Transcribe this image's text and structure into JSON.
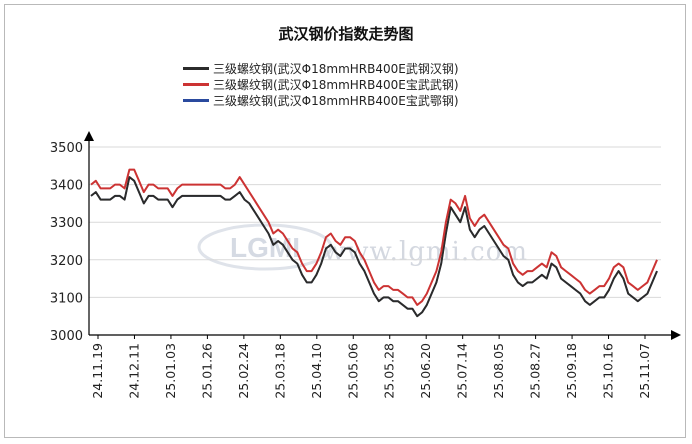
{
  "chart_data": {
    "type": "line",
    "title": "武汉钢价指数走势图",
    "xlabel": "",
    "ylabel": "",
    "ylim": [
      3000,
      3500
    ],
    "yticks": [
      "3500",
      "3400",
      "3300",
      "3200",
      "3100",
      "3000"
    ],
    "xticks": [
      "24.11.19",
      "24.12.11",
      "25.01.03",
      "25.01.26",
      "25.02.24",
      "25.03.18",
      "25.04.10",
      "25.05.06",
      "25.05.28",
      "25.06.20",
      "25.07.14",
      "25.08.05",
      "25.08.27",
      "25.09.18",
      "25.10.16",
      "25.11.07"
    ],
    "grid": true,
    "legend_position": "top-center",
    "series": [
      {
        "name": "三级螺纹钢(武汉Φ18mmHRB400E武钢汉钢)",
        "color": "#2b2b2b",
        "values": [
          3370,
          3380,
          3360,
          3360,
          3360,
          3370,
          3370,
          3360,
          3420,
          3410,
          3380,
          3350,
          3370,
          3370,
          3360,
          3360,
          3360,
          3340,
          3360,
          3370,
          3370,
          3370,
          3370,
          3370,
          3370,
          3370,
          3370,
          3370,
          3360,
          3360,
          3370,
          3380,
          3360,
          3350,
          3330,
          3310,
          3290,
          3270,
          3240,
          3250,
          3240,
          3220,
          3200,
          3190,
          3160,
          3140,
          3140,
          3160,
          3190,
          3230,
          3240,
          3220,
          3210,
          3230,
          3230,
          3220,
          3190,
          3170,
          3140,
          3110,
          3090,
          3100,
          3100,
          3090,
          3090,
          3080,
          3070,
          3070,
          3050,
          3060,
          3080,
          3110,
          3140,
          3190,
          3270,
          3340,
          3320,
          3300,
          3340,
          3280,
          3260,
          3280,
          3290,
          3270,
          3250,
          3230,
          3210,
          3200,
          3160,
          3140,
          3130,
          3140,
          3140,
          3150,
          3160,
          3150,
          3190,
          3180,
          3150,
          3140,
          3130,
          3120,
          3110,
          3090,
          3080,
          3090,
          3100,
          3100,
          3120,
          3150,
          3170,
          3150,
          3110,
          3100,
          3090,
          3100,
          3110,
          3140,
          3170
        ]
      },
      {
        "name": "三级螺纹钢(武汉Φ18mmHRB400E宝武武钢)",
        "color": "#cc3333",
        "values": [
          3400,
          3410,
          3390,
          3390,
          3390,
          3400,
          3400,
          3390,
          3440,
          3440,
          3410,
          3380,
          3400,
          3400,
          3390,
          3390,
          3390,
          3370,
          3390,
          3400,
          3400,
          3400,
          3400,
          3400,
          3400,
          3400,
          3400,
          3400,
          3390,
          3390,
          3400,
          3420,
          3400,
          3380,
          3360,
          3340,
          3320,
          3300,
          3270,
          3280,
          3270,
          3250,
          3230,
          3220,
          3190,
          3170,
          3170,
          3190,
          3220,
          3260,
          3270,
          3250,
          3240,
          3260,
          3260,
          3250,
          3220,
          3200,
          3170,
          3140,
          3120,
          3130,
          3130,
          3120,
          3120,
          3110,
          3100,
          3100,
          3080,
          3090,
          3110,
          3140,
          3170,
          3220,
          3300,
          3360,
          3350,
          3330,
          3370,
          3310,
          3290,
          3310,
          3320,
          3300,
          3280,
          3260,
          3240,
          3230,
          3190,
          3170,
          3160,
          3170,
          3170,
          3180,
          3190,
          3180,
          3220,
          3210,
          3180,
          3170,
          3160,
          3150,
          3140,
          3120,
          3110,
          3120,
          3130,
          3130,
          3150,
          3180,
          3190,
          3180,
          3140,
          3130,
          3120,
          3130,
          3140,
          3170,
          3200
        ]
      },
      {
        "name": "三级螺纹钢(武汉Φ18mmHRB400E宝武鄂钢)",
        "color": "#2a4a9e",
        "values": [
          3370,
          3380,
          3360,
          3360,
          3360,
          3370,
          3370,
          3360,
          3420,
          3410,
          3380,
          3350,
          3370,
          3370,
          3360,
          3360,
          3360,
          3340,
          3360,
          3370,
          3370,
          3370,
          3370,
          3370,
          3370,
          3370,
          3370,
          3370,
          3360,
          3360,
          3370,
          3380,
          3360,
          3350,
          3330,
          3310,
          3290,
          3270,
          3240,
          3250,
          3240,
          3220,
          3200,
          3190,
          3160,
          3140,
          3140,
          3160,
          3190,
          3230,
          3240,
          3220,
          3210,
          3230,
          3230,
          3220,
          3190,
          3170,
          3140,
          3110,
          3090,
          3100,
          3100,
          3090,
          3090,
          3080,
          3070,
          3070,
          3050,
          3060,
          3080,
          3110,
          3140,
          3190,
          3270,
          3340,
          3320,
          3300,
          3340,
          3280,
          3260,
          3280,
          3290,
          3270,
          3250,
          3230,
          3210,
          3200,
          3160,
          3140,
          3130,
          3140,
          3140,
          3150,
          3160,
          3150,
          3190,
          3180,
          3150,
          3140,
          3130,
          3120,
          3110,
          3090,
          3080,
          3090,
          3100,
          3100,
          3120,
          3150,
          3170,
          3150,
          3110,
          3100,
          3090,
          3100,
          3110,
          3140,
          3170
        ]
      }
    ],
    "watermark": {
      "logo_text": "LGMI",
      "url_text": "www.lgmi.com"
    }
  }
}
